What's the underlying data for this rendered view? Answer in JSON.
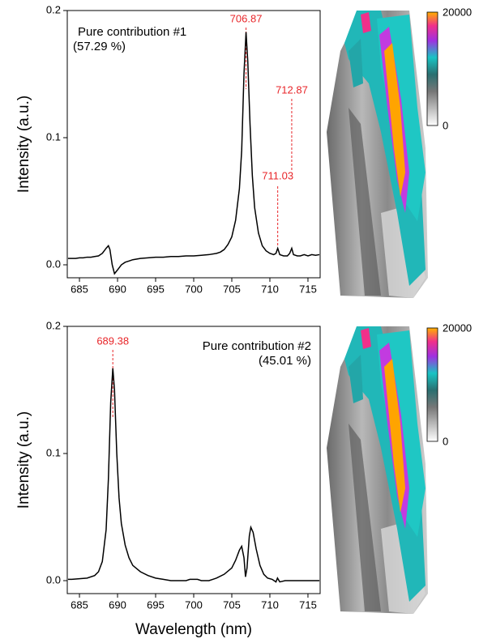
{
  "chart_data": [
    {
      "type": "line",
      "y_label": "Intensity (a.u.)",
      "texts": [
        "Pure contribution #1",
        "(57.29 %)"
      ],
      "x": [
        683.5,
        684,
        684.5,
        685,
        685.5,
        686,
        686.5,
        687,
        687.5,
        688,
        688.5,
        688.8,
        689,
        689.3,
        689.6,
        690,
        690.5,
        691,
        691.5,
        692,
        693,
        694,
        695,
        696,
        697,
        698,
        699,
        700,
        701,
        702,
        703,
        703.5,
        704,
        704.5,
        705,
        705.5,
        706,
        706.3,
        706.6,
        706.87,
        707.1,
        707.4,
        707.7,
        708,
        708.5,
        709,
        709.5,
        710,
        710.5,
        710.8,
        711.03,
        711.3,
        711.8,
        712.3,
        712.6,
        712.87,
        713.1,
        713.6,
        714,
        714.5,
        715,
        715.5,
        716,
        716.5
      ],
      "series": [
        {
          "color": "#000000",
          "values": [
            0.005,
            0.005,
            0.005,
            0.0055,
            0.0055,
            0.006,
            0.006,
            0.0065,
            0.007,
            0.009,
            0.013,
            0.015,
            0.012,
            0.0,
            -0.007,
            -0.004,
            0.0,
            0.002,
            0.003,
            0.004,
            0.005,
            0.0055,
            0.006,
            0.006,
            0.0065,
            0.0065,
            0.007,
            0.007,
            0.0075,
            0.008,
            0.009,
            0.01,
            0.012,
            0.016,
            0.022,
            0.035,
            0.06,
            0.09,
            0.15,
            0.183,
            0.16,
            0.11,
            0.07,
            0.045,
            0.025,
            0.015,
            0.011,
            0.009,
            0.008,
            0.009,
            0.013,
            0.008,
            0.007,
            0.007,
            0.009,
            0.013,
            0.008,
            0.007,
            0.007,
            0.008,
            0.007,
            0.008,
            0.0075,
            0.008
          ]
        }
      ],
      "annotations": [
        {
          "label": "706.87",
          "x": 706.87
        },
        {
          "label": "712.87",
          "x": 712.87
        },
        {
          "label": "711.03",
          "x": 711.03
        }
      ],
      "annotation_color": "#e8262a",
      "xlim": [
        683.4,
        716.6
      ],
      "ylim": [
        -0.0102,
        0.2
      ],
      "xticks": [
        685,
        690,
        695,
        700,
        705,
        710,
        715
      ],
      "yticks": [
        {
          "value": 0,
          "label": "0.0"
        },
        {
          "value": 0.1,
          "label": "0.1"
        },
        {
          "value": 0.2,
          "label": "0.2"
        }
      ]
    },
    {
      "type": "line",
      "y_label": "Intensity (a.u.)",
      "x_label": "Wavelength (nm)",
      "texts": [
        "Pure contribution #2",
        "(45.01 %)"
      ],
      "x": [
        683.5,
        684,
        685,
        686,
        687,
        687.5,
        688,
        688.5,
        688.8,
        689.1,
        689.38,
        689.6,
        689.9,
        690.2,
        690.5,
        691,
        691.5,
        692,
        693,
        694,
        695,
        696,
        697,
        698,
        699,
        699.5,
        700,
        700.5,
        701,
        702,
        702.5,
        703,
        704,
        705,
        705.5,
        706,
        706.3,
        706.6,
        706.8,
        707,
        707.3,
        707.5,
        707.8,
        708.2,
        708.7,
        709.2,
        709.7,
        710.3,
        710.8,
        711,
        711.3,
        712,
        713,
        714,
        715,
        716.5
      ],
      "series": [
        {
          "color": "#000000",
          "values": [
            0.001,
            0.001,
            0.0015,
            0.002,
            0.004,
            0.007,
            0.015,
            0.04,
            0.08,
            0.14,
            0.167,
            0.15,
            0.1,
            0.065,
            0.045,
            0.028,
            0.018,
            0.012,
            0.007,
            0.004,
            0.002,
            0.001,
            0.0,
            0.0,
            0.0,
            0.001,
            0.001,
            0.001,
            0.0,
            0.0,
            0.001,
            0.002,
            0.005,
            0.01,
            0.016,
            0.024,
            0.027,
            0.018,
            0.003,
            0.01,
            0.035,
            0.042,
            0.038,
            0.025,
            0.012,
            0.005,
            0.002,
            0.001,
            -0.001,
            0.002,
            -0.001,
            0.0,
            0.0,
            0.0,
            0.0,
            0.0
          ]
        }
      ],
      "annotations": [
        {
          "label": "689.38",
          "x": 689.38
        }
      ],
      "annotation_color": "#e8262a",
      "xlim": [
        683.4,
        716.6
      ],
      "ylim": [
        -0.0102,
        0.2
      ],
      "xticks": [
        685,
        690,
        695,
        700,
        705,
        710,
        715
      ],
      "yticks": [
        {
          "value": 0,
          "label": "0.0"
        },
        {
          "value": 0.1,
          "label": "0.1"
        },
        {
          "value": 0.2,
          "label": "0.2"
        }
      ]
    }
  ],
  "colorbars": [
    {
      "max": 20000,
      "min": 0
    },
    {
      "max": 20000,
      "min": 0
    }
  ]
}
